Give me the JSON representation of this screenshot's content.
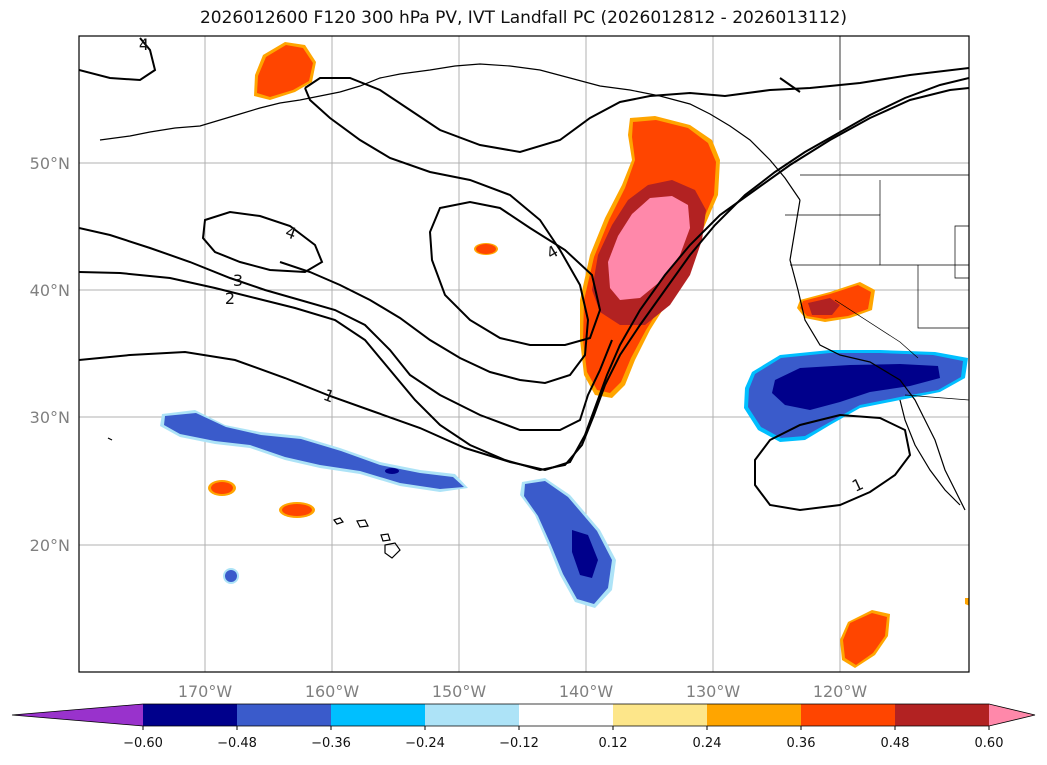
{
  "title": "2026012600 F120 300 hPa PV, IVT Landfall PC (2026012812 - 2026013112)",
  "lat_labels": [
    "50°N",
    "40°N",
    "30°N",
    "20°N"
  ],
  "lon_labels": [
    "170°W",
    "160°W",
    "150°W",
    "140°W",
    "130°W",
    "120°W"
  ],
  "contour_labels": [
    "4",
    "4",
    "4",
    "3",
    "2",
    "1",
    "1"
  ],
  "colorbar": {
    "ticks": [
      "−0.60",
      "−0.48",
      "−0.36",
      "−0.24",
      "−0.12",
      "0.12",
      "0.24",
      "0.36",
      "0.48",
      "0.60"
    ],
    "colors": [
      "#9932CC",
      "#00008B",
      "#3A5BCB",
      "#00BFFF",
      "#ADE3F7",
      "#FFFFFF",
      "#FDE68A",
      "#FFA500",
      "#FF4500",
      "#B22222",
      "#FF88AA"
    ]
  }
}
